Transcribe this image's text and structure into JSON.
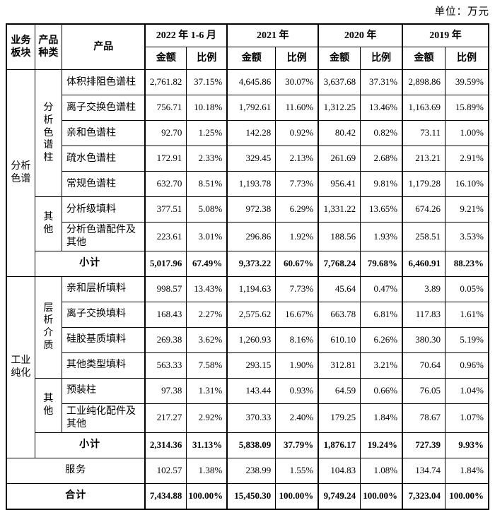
{
  "unit_label": "单位：万元",
  "table": {
    "header": {
      "col1": "业务板块",
      "col2": "产品种类",
      "col3": "产品",
      "periods": [
        "2022 年 1-6 月",
        "2021 年",
        "2020 年",
        "2019 年"
      ],
      "amount_label": "金额",
      "ratio_label": "比例"
    },
    "rows": [
      {
        "cells": [
          {
            "t": "分析色谱",
            "type": "seg",
            "rs": 8
          },
          {
            "t": "分析色谱柱",
            "type": "cat",
            "rs": 5
          },
          {
            "t": "体积排阻色谱柱",
            "type": "prod"
          },
          {
            "t": "2,761.82",
            "type": "num"
          },
          {
            "t": "37.15%",
            "type": "pct"
          },
          {
            "t": "4,645.86",
            "type": "num"
          },
          {
            "t": "30.07%",
            "type": "pct"
          },
          {
            "t": "3,637.68",
            "type": "num"
          },
          {
            "t": "37.31%",
            "type": "pct"
          },
          {
            "t": "2,898.86",
            "type": "num"
          },
          {
            "t": "39.59%",
            "type": "pct"
          }
        ]
      },
      {
        "cells": [
          {
            "t": "离子交换色谱柱",
            "type": "prod"
          },
          {
            "t": "756.71",
            "type": "num"
          },
          {
            "t": "10.18%",
            "type": "pct"
          },
          {
            "t": "1,792.61",
            "type": "num"
          },
          {
            "t": "11.60%",
            "type": "pct"
          },
          {
            "t": "1,312.25",
            "type": "num"
          },
          {
            "t": "13.46%",
            "type": "pct"
          },
          {
            "t": "1,163.69",
            "type": "num"
          },
          {
            "t": "15.89%",
            "type": "pct"
          }
        ]
      },
      {
        "cells": [
          {
            "t": "亲和色谱柱",
            "type": "prod"
          },
          {
            "t": "92.70",
            "type": "num"
          },
          {
            "t": "1.25%",
            "type": "pct"
          },
          {
            "t": "142.28",
            "type": "num"
          },
          {
            "t": "0.92%",
            "type": "pct"
          },
          {
            "t": "80.42",
            "type": "num"
          },
          {
            "t": "0.82%",
            "type": "pct"
          },
          {
            "t": "73.11",
            "type": "num"
          },
          {
            "t": "1.00%",
            "type": "pct"
          }
        ]
      },
      {
        "cells": [
          {
            "t": "疏水色谱柱",
            "type": "prod"
          },
          {
            "t": "172.91",
            "type": "num"
          },
          {
            "t": "2.33%",
            "type": "pct"
          },
          {
            "t": "329.45",
            "type": "num"
          },
          {
            "t": "2.13%",
            "type": "pct"
          },
          {
            "t": "261.69",
            "type": "num"
          },
          {
            "t": "2.68%",
            "type": "pct"
          },
          {
            "t": "213.21",
            "type": "num"
          },
          {
            "t": "2.91%",
            "type": "pct"
          }
        ]
      },
      {
        "cells": [
          {
            "t": "常规色谱柱",
            "type": "prod"
          },
          {
            "t": "632.70",
            "type": "num"
          },
          {
            "t": "8.51%",
            "type": "pct"
          },
          {
            "t": "1,193.78",
            "type": "num"
          },
          {
            "t": "7.73%",
            "type": "pct"
          },
          {
            "t": "956.41",
            "type": "num"
          },
          {
            "t": "9.81%",
            "type": "pct"
          },
          {
            "t": "1,179.28",
            "type": "num"
          },
          {
            "t": "16.10%",
            "type": "pct"
          }
        ]
      },
      {
        "cells": [
          {
            "t": "其他",
            "type": "cat",
            "rs": 2
          },
          {
            "t": "分析级填料",
            "type": "prod"
          },
          {
            "t": "377.51",
            "type": "num"
          },
          {
            "t": "5.08%",
            "type": "pct"
          },
          {
            "t": "972.38",
            "type": "num"
          },
          {
            "t": "6.29%",
            "type": "pct"
          },
          {
            "t": "1,331.22",
            "type": "num"
          },
          {
            "t": "13.65%",
            "type": "pct"
          },
          {
            "t": "674.26",
            "type": "num"
          },
          {
            "t": "9.21%",
            "type": "pct"
          }
        ]
      },
      {
        "cells": [
          {
            "t": "分析色谱配件及其他",
            "type": "prod"
          },
          {
            "t": "223.61",
            "type": "num"
          },
          {
            "t": "3.01%",
            "type": "pct"
          },
          {
            "t": "296.86",
            "type": "num"
          },
          {
            "t": "1.92%",
            "type": "pct"
          },
          {
            "t": "188.56",
            "type": "num"
          },
          {
            "t": "1.93%",
            "type": "pct"
          },
          {
            "t": "258.51",
            "type": "num"
          },
          {
            "t": "3.53%",
            "type": "pct"
          }
        ]
      },
      {
        "bold": true,
        "cells": [
          {
            "t": "小计",
            "type": "label",
            "cs": 2
          },
          {
            "t": "5,017.96",
            "type": "num"
          },
          {
            "t": "67.49%",
            "type": "pct"
          },
          {
            "t": "9,373.22",
            "type": "num"
          },
          {
            "t": "60.67%",
            "type": "pct"
          },
          {
            "t": "7,768.24",
            "type": "num"
          },
          {
            "t": "79.68%",
            "type": "pct"
          },
          {
            "t": "6,460.91",
            "type": "num"
          },
          {
            "t": "88.23%",
            "type": "pct"
          }
        ]
      },
      {
        "cells": [
          {
            "t": "工业纯化",
            "type": "seg",
            "rs": 7
          },
          {
            "t": "层析介质",
            "type": "cat",
            "rs": 4
          },
          {
            "t": "亲和层析填料",
            "type": "prod"
          },
          {
            "t": "998.57",
            "type": "num"
          },
          {
            "t": "13.43%",
            "type": "pct"
          },
          {
            "t": "1,194.63",
            "type": "num"
          },
          {
            "t": "7.73%",
            "type": "pct"
          },
          {
            "t": "45.64",
            "type": "num"
          },
          {
            "t": "0.47%",
            "type": "pct"
          },
          {
            "t": "3.89",
            "type": "num"
          },
          {
            "t": "0.05%",
            "type": "pct"
          }
        ]
      },
      {
        "cells": [
          {
            "t": "离子交换填料",
            "type": "prod"
          },
          {
            "t": "168.43",
            "type": "num"
          },
          {
            "t": "2.27%",
            "type": "pct"
          },
          {
            "t": "2,575.62",
            "type": "num"
          },
          {
            "t": "16.67%",
            "type": "pct"
          },
          {
            "t": "663.78",
            "type": "num"
          },
          {
            "t": "6.81%",
            "type": "pct"
          },
          {
            "t": "117.83",
            "type": "num"
          },
          {
            "t": "1.61%",
            "type": "pct"
          }
        ]
      },
      {
        "cells": [
          {
            "t": "硅胶基质填料",
            "type": "prod"
          },
          {
            "t": "269.38",
            "type": "num"
          },
          {
            "t": "3.62%",
            "type": "pct"
          },
          {
            "t": "1,260.93",
            "type": "num"
          },
          {
            "t": "8.16%",
            "type": "pct"
          },
          {
            "t": "610.10",
            "type": "num"
          },
          {
            "t": "6.26%",
            "type": "pct"
          },
          {
            "t": "380.30",
            "type": "num"
          },
          {
            "t": "5.19%",
            "type": "pct"
          }
        ]
      },
      {
        "cells": [
          {
            "t": "其他类型填料",
            "type": "prod"
          },
          {
            "t": "563.33",
            "type": "num"
          },
          {
            "t": "7.58%",
            "type": "pct"
          },
          {
            "t": "293.15",
            "type": "num"
          },
          {
            "t": "1.90%",
            "type": "pct"
          },
          {
            "t": "312.81",
            "type": "num"
          },
          {
            "t": "3.21%",
            "type": "pct"
          },
          {
            "t": "70.64",
            "type": "num"
          },
          {
            "t": "0.96%",
            "type": "pct"
          }
        ]
      },
      {
        "cells": [
          {
            "t": "其他",
            "type": "cat",
            "rs": 2
          },
          {
            "t": "预装柱",
            "type": "prod"
          },
          {
            "t": "97.38",
            "type": "num"
          },
          {
            "t": "1.31%",
            "type": "pct"
          },
          {
            "t": "143.44",
            "type": "num"
          },
          {
            "t": "0.93%",
            "type": "pct"
          },
          {
            "t": "64.59",
            "type": "num"
          },
          {
            "t": "0.66%",
            "type": "pct"
          },
          {
            "t": "76.05",
            "type": "num"
          },
          {
            "t": "1.04%",
            "type": "pct"
          }
        ]
      },
      {
        "cells": [
          {
            "t": "工业纯化配件及其他",
            "type": "prod"
          },
          {
            "t": "217.27",
            "type": "num"
          },
          {
            "t": "2.92%",
            "type": "pct"
          },
          {
            "t": "370.33",
            "type": "num"
          },
          {
            "t": "2.40%",
            "type": "pct"
          },
          {
            "t": "179.25",
            "type": "num"
          },
          {
            "t": "1.84%",
            "type": "pct"
          },
          {
            "t": "78.67",
            "type": "num"
          },
          {
            "t": "1.07%",
            "type": "pct"
          }
        ]
      },
      {
        "bold": true,
        "cells": [
          {
            "t": "小计",
            "type": "label",
            "cs": 2
          },
          {
            "t": "2,314.36",
            "type": "num"
          },
          {
            "t": "31.13%",
            "type": "pct"
          },
          {
            "t": "5,838.09",
            "type": "num"
          },
          {
            "t": "37.79%",
            "type": "pct"
          },
          {
            "t": "1,876.17",
            "type": "num"
          },
          {
            "t": "19.24%",
            "type": "pct"
          },
          {
            "t": "727.39",
            "type": "num"
          },
          {
            "t": "9.93%",
            "type": "pct"
          }
        ]
      },
      {
        "cells": [
          {
            "t": "服务",
            "type": "label",
            "cs": 3
          },
          {
            "t": "102.57",
            "type": "num"
          },
          {
            "t": "1.38%",
            "type": "pct"
          },
          {
            "t": "238.99",
            "type": "num"
          },
          {
            "t": "1.55%",
            "type": "pct"
          },
          {
            "t": "104.83",
            "type": "num"
          },
          {
            "t": "1.08%",
            "type": "pct"
          },
          {
            "t": "134.74",
            "type": "num"
          },
          {
            "t": "1.84%",
            "type": "pct"
          }
        ]
      },
      {
        "bold": true,
        "cells": [
          {
            "t": "合计",
            "type": "label",
            "cs": 3
          },
          {
            "t": "7,434.88",
            "type": "num"
          },
          {
            "t": "100.00%",
            "type": "pct"
          },
          {
            "t": "15,450.30",
            "type": "num"
          },
          {
            "t": "100.00%",
            "type": "pct"
          },
          {
            "t": "9,749.24",
            "type": "num"
          },
          {
            "t": "100.00%",
            "type": "pct"
          },
          {
            "t": "7,323.04",
            "type": "num"
          },
          {
            "t": "100.00%",
            "type": "pct"
          }
        ]
      }
    ]
  }
}
